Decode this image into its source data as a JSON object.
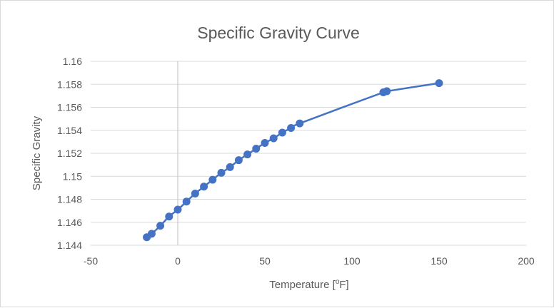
{
  "chart_data": {
    "type": "scatter",
    "title": "Specific Gravity Curve",
    "xlabel": "Temperature [",
    "xlabel_sup": "o",
    "xlabel_tail": "F]",
    "ylabel": "Specific Gravity",
    "xlim": [
      -50,
      200
    ],
    "ylim": [
      1.144,
      1.16
    ],
    "xticks": [
      "-50",
      "0",
      "50",
      "100",
      "150",
      "200"
    ],
    "yticks": [
      "1.144",
      "1.146",
      "1.148",
      "1.15",
      "1.152",
      "1.154",
      "1.156",
      "1.158",
      "1.16"
    ],
    "grid": true,
    "series": [
      {
        "color": "#4472c4",
        "marker": "circle",
        "line": "smooth",
        "x": [
          -17.8,
          -15,
          -10,
          -5,
          0,
          5,
          10,
          15,
          20,
          25,
          30,
          35,
          40,
          45,
          50,
          55,
          60,
          65,
          70,
          118,
          120,
          150
        ],
        "y": [
          1.1447,
          1.145,
          1.1457,
          1.1465,
          1.1471,
          1.1478,
          1.1485,
          1.1491,
          1.1497,
          1.1503,
          1.1508,
          1.1514,
          1.1519,
          1.1524,
          1.1529,
          1.1533,
          1.1538,
          1.1542,
          1.1546,
          1.1573,
          1.1574,
          1.1581
        ]
      }
    ]
  }
}
